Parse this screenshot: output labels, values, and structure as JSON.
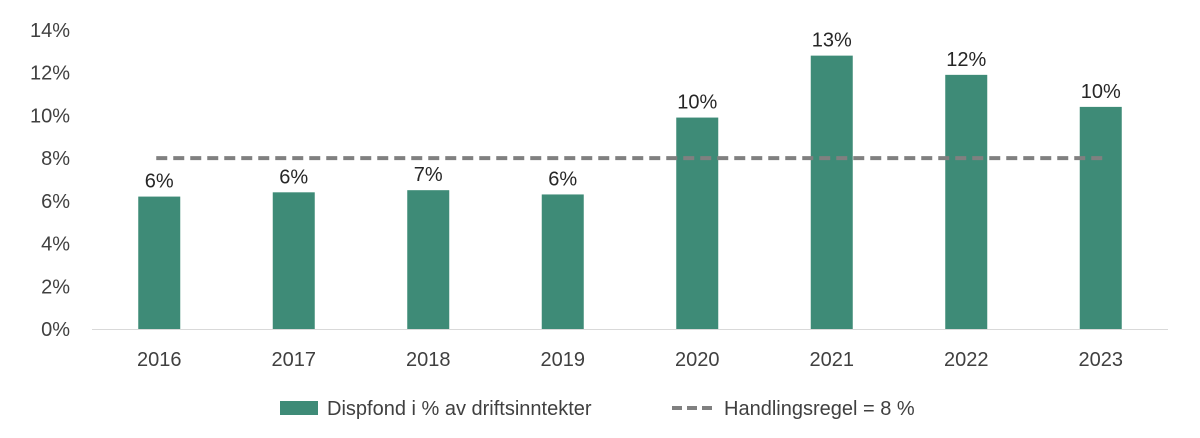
{
  "chart_data": {
    "type": "bar",
    "categories": [
      "2016",
      "2017",
      "2018",
      "2019",
      "2020",
      "2021",
      "2022",
      "2023"
    ],
    "series": [
      {
        "name": "Dispfond i % av driftsinntekter",
        "values": [
          6.2,
          6.4,
          6.5,
          6.3,
          9.9,
          12.8,
          11.9,
          10.4
        ],
        "labels": [
          "6%",
          "6%",
          "7%",
          "6%",
          "10%",
          "13%",
          "12%",
          "10%"
        ],
        "color": "#3e8b77"
      },
      {
        "name": "Handlingsregel = 8 %",
        "type": "line",
        "values": [
          8,
          8,
          8,
          8,
          8,
          8,
          8,
          8
        ],
        "color": "#808080",
        "dash": "dashed"
      }
    ],
    "ylim": [
      0,
      14
    ],
    "yticks": [
      0,
      2,
      4,
      6,
      8,
      10,
      12,
      14
    ],
    "ytick_labels": [
      "0%",
      "2%",
      "4%",
      "6%",
      "8%",
      "10%",
      "12%",
      "14%"
    ],
    "grid": false,
    "legend_position": "bottom",
    "title": "",
    "xlabel": "",
    "ylabel": ""
  }
}
